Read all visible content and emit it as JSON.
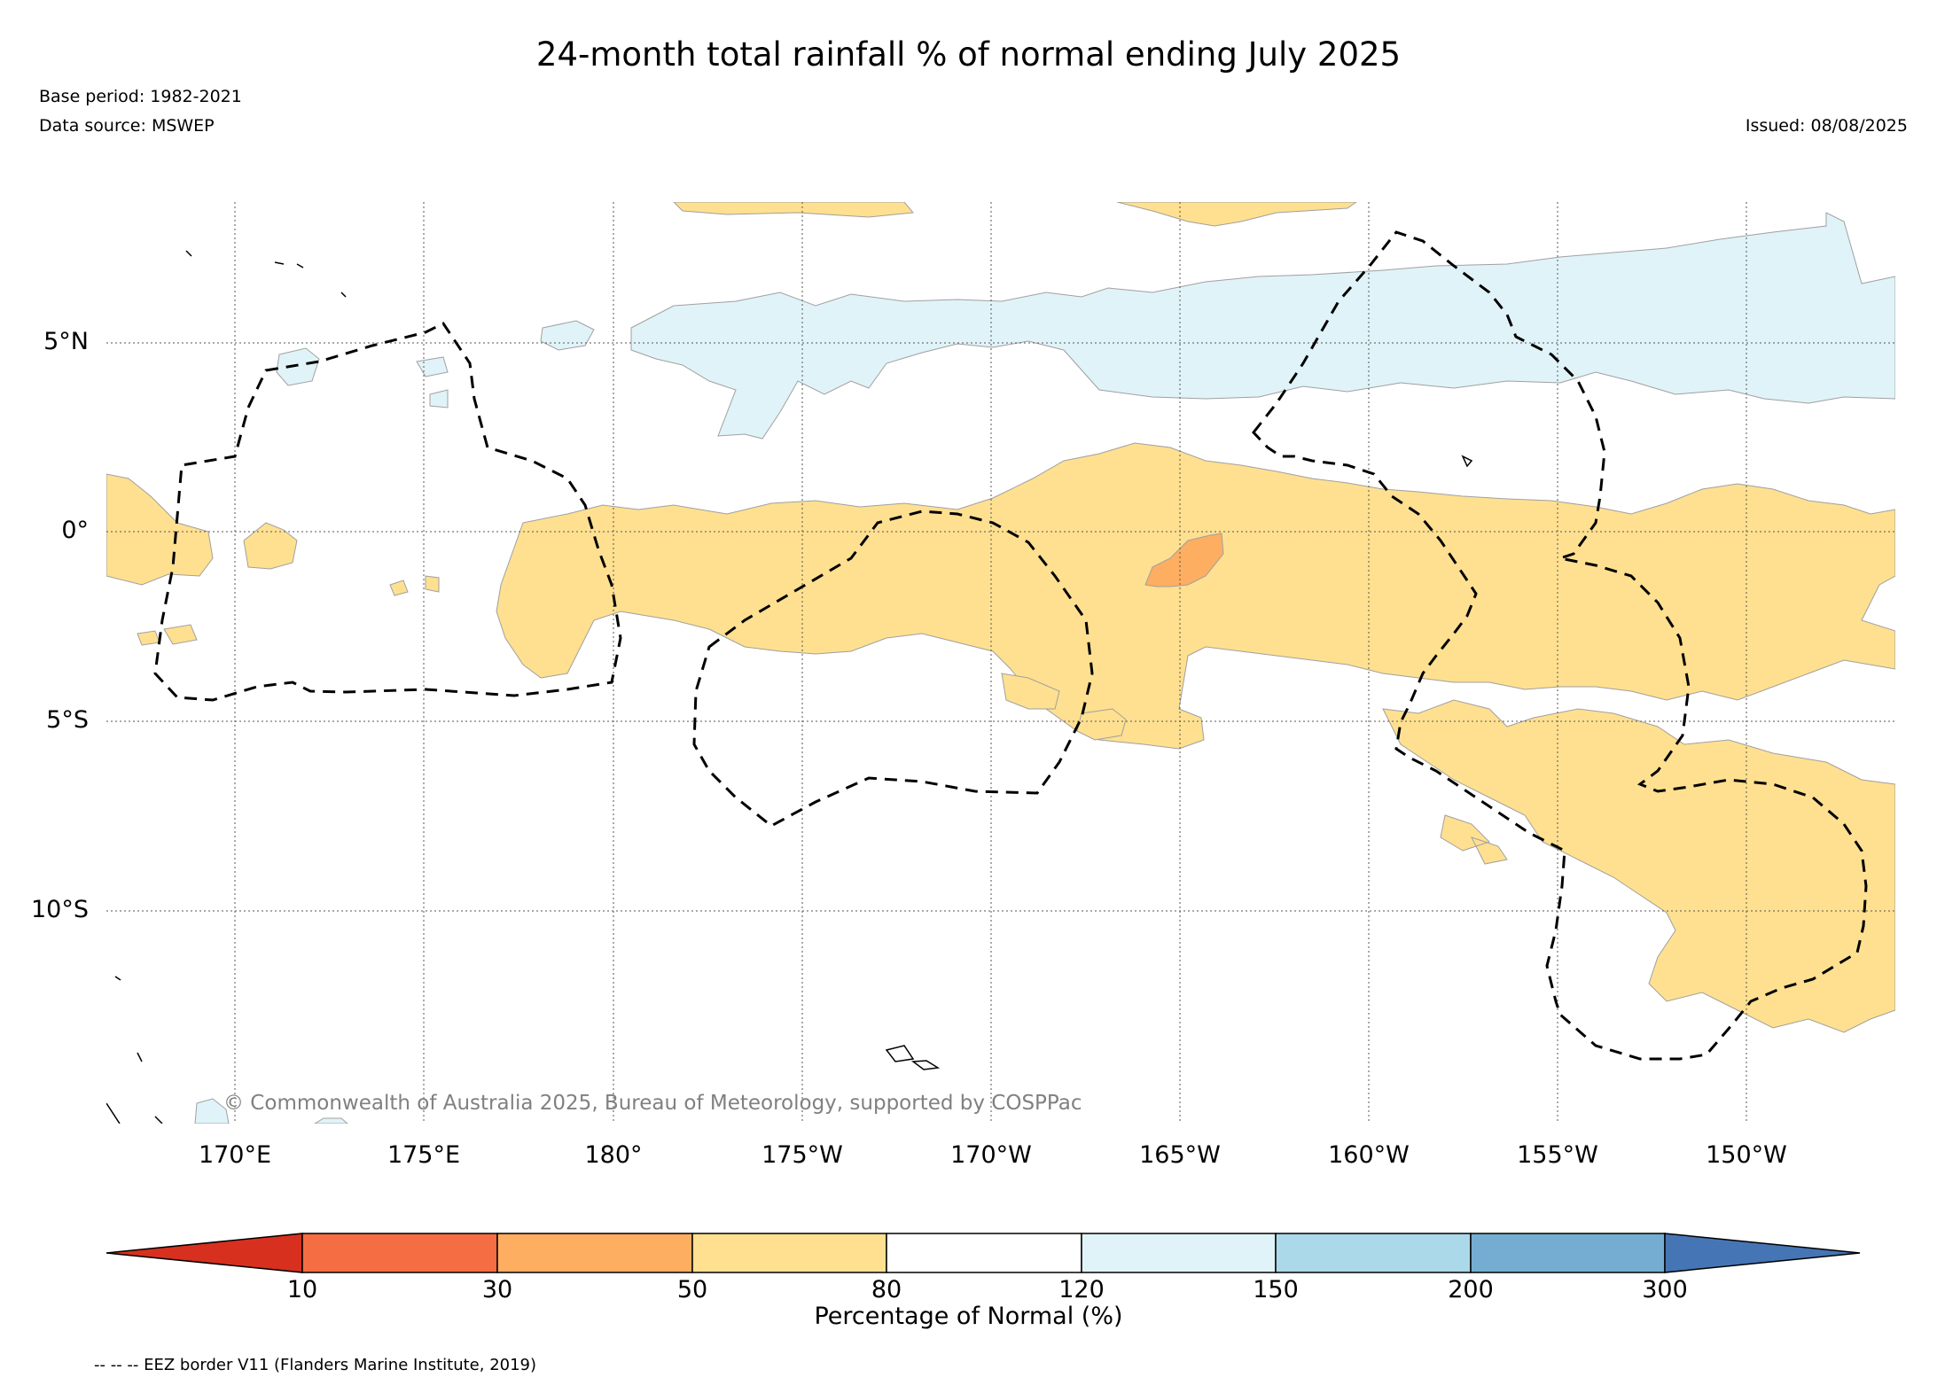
{
  "title": "24-month total rainfall % of normal ending July 2025",
  "base_period": "Base period: 1982-2021",
  "data_source": "Data source: MSWEP",
  "issued": "Issued: 08/08/2025",
  "copyright": "© Commonwealth of Australia 2025, Bureau of Meteorology, supported by COSPPac",
  "eez_note": "-- -- -- EEZ border V11 (Flanders Marine Institute, 2019)",
  "lat_labels": [
    "5°N",
    "0°",
    "5°S",
    "10°S"
  ],
  "lon_labels": [
    "170°E",
    "175°E",
    "180°",
    "175°W",
    "170°W",
    "165°W",
    "160°W",
    "155°W",
    "150°W"
  ],
  "colorbar": {
    "title": "Percentage of Normal (%)",
    "ticks": [
      "10",
      "30",
      "50",
      "80",
      "120",
      "150",
      "200",
      "300"
    ],
    "colors": [
      "#d7301f",
      "#f46d43",
      "#fdae61",
      "#fee090",
      "#ffffff",
      "#e0f3f8",
      "#abd9e9",
      "#74add1",
      "#4575b4"
    ]
  },
  "legend_colors": {
    "dry": "#fee090",
    "very_dry": "#fdae61",
    "wet": "#e0f3f8"
  }
}
